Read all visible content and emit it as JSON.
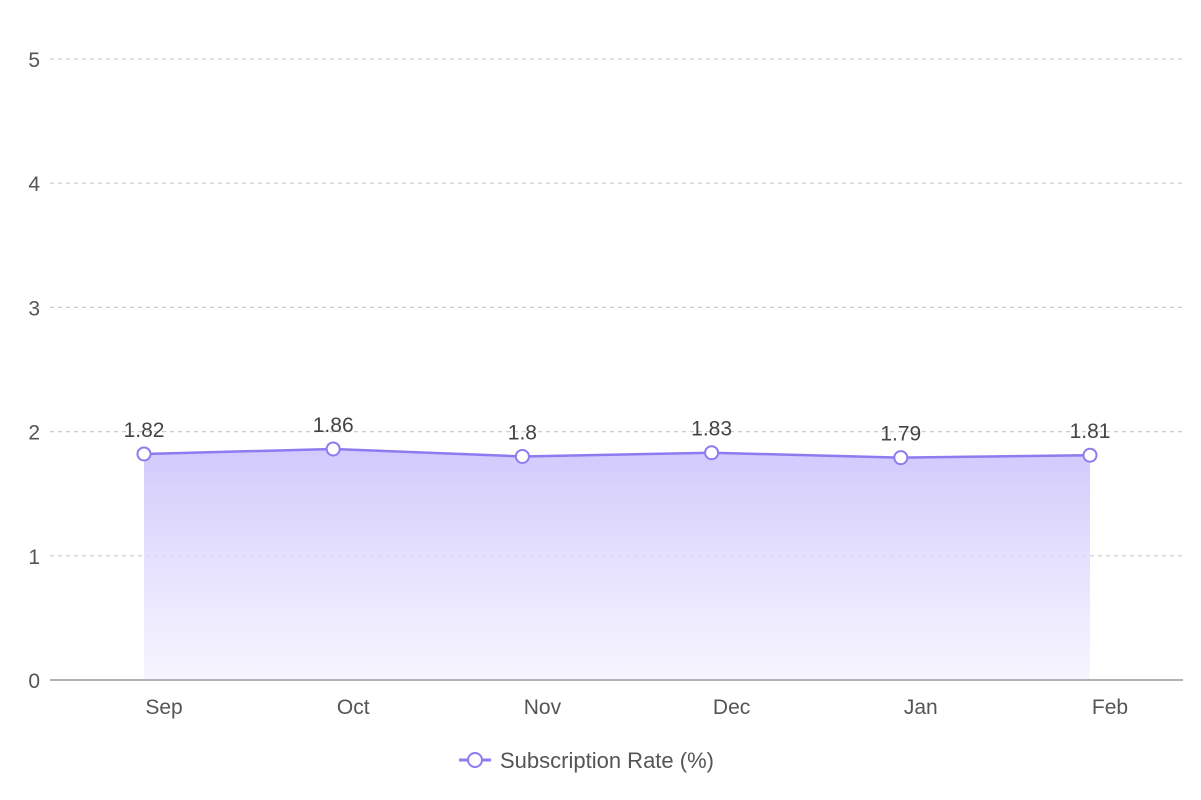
{
  "chart_data": {
    "type": "area",
    "categories": [
      "Sep",
      "Oct",
      "Nov",
      "Dec",
      "Jan",
      "Feb"
    ],
    "series": [
      {
        "name": "Subscription Rate (%)",
        "values": [
          1.82,
          1.86,
          1.8,
          1.83,
          1.79,
          1.81
        ],
        "data_labels": [
          "1.82",
          "1.86",
          "1.8",
          "1.83",
          "1.79",
          "1.81"
        ]
      }
    ],
    "ylim": [
      0,
      5
    ],
    "y_ticks": [
      "0",
      "1",
      "2",
      "3",
      "4",
      "5"
    ],
    "grid": true,
    "legend_position": "bottom-center",
    "colors": {
      "line": "#8b7cf0",
      "fill_top": "#c9c0fb",
      "fill_bottom": "#f4f1ff",
      "grid": "#cccccc",
      "axis": "#999999"
    }
  }
}
